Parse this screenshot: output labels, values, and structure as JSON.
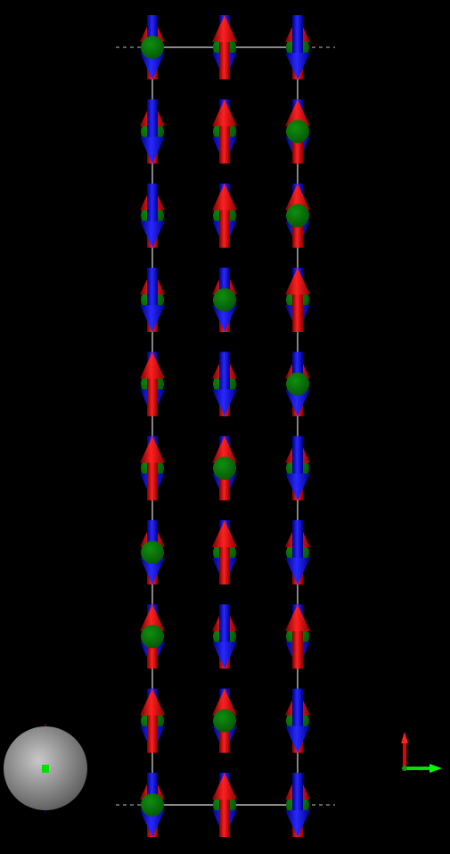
{
  "scene": {
    "type": "spin-lattice-3d",
    "background": "#000000",
    "colors": {
      "up_arrow": "#e60000",
      "down_arrow": "#1010e6",
      "sphere": "#0a7a0a",
      "cell_edge": "#d9d9d9"
    },
    "columns": 3,
    "rows": 10,
    "lattice": [
      [
        {
          "main": "down",
          "sphere": "front"
        },
        {
          "main": "up",
          "sphere": "behind"
        },
        {
          "main": "down",
          "sphere": "behind"
        }
      ],
      [
        {
          "main": "down",
          "sphere": "behind"
        },
        {
          "main": "up",
          "sphere": "behind"
        },
        {
          "main": "up",
          "sphere": "front"
        }
      ],
      [
        {
          "main": "down",
          "sphere": "behind"
        },
        {
          "main": "up",
          "sphere": "behind"
        },
        {
          "main": "up",
          "sphere": "front"
        }
      ],
      [
        {
          "main": "down",
          "sphere": "behind"
        },
        {
          "main": "down",
          "sphere": "front"
        },
        {
          "main": "up",
          "sphere": "behind"
        }
      ],
      [
        {
          "main": "up",
          "sphere": "behind"
        },
        {
          "main": "down",
          "sphere": "behind"
        },
        {
          "main": "down",
          "sphere": "front"
        }
      ],
      [
        {
          "main": "up",
          "sphere": "behind"
        },
        {
          "main": "up",
          "sphere": "front"
        },
        {
          "main": "down",
          "sphere": "behind"
        }
      ],
      [
        {
          "main": "down",
          "sphere": "front"
        },
        {
          "main": "up",
          "sphere": "behind"
        },
        {
          "main": "down",
          "sphere": "behind"
        }
      ],
      [
        {
          "main": "up",
          "sphere": "front"
        },
        {
          "main": "down",
          "sphere": "behind"
        },
        {
          "main": "up",
          "sphere": "behind"
        }
      ],
      [
        {
          "main": "up",
          "sphere": "behind"
        },
        {
          "main": "up",
          "sphere": "front"
        },
        {
          "main": "down",
          "sphere": "behind"
        }
      ],
      [
        {
          "main": "down",
          "sphere": "front"
        },
        {
          "main": "up",
          "sphere": "behind"
        },
        {
          "main": "down",
          "sphere": "behind"
        }
      ]
    ]
  },
  "orientation_widget": {
    "icon": "view-orientation-sphere-icon",
    "sphere_color": "#9a9a9a",
    "marker_color": "#00e000"
  },
  "axes_widget": {
    "icon": "axes-triad-icon",
    "vertical_axis_color": "#e60000",
    "horizontal_axis_color": "#00e000"
  }
}
